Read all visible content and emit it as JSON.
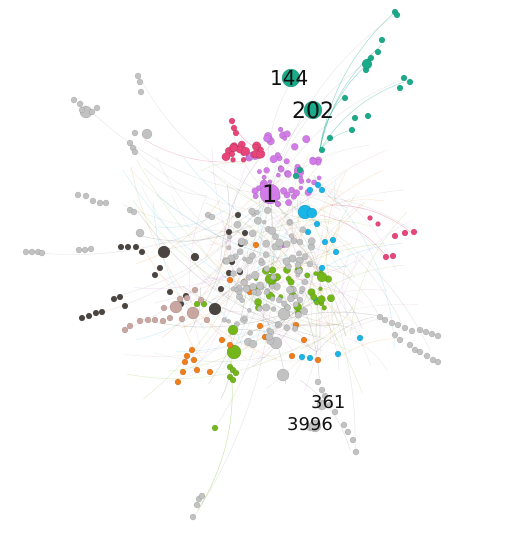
{
  "graph": {
    "labels": {
      "n144": "144",
      "n202": "202",
      "n1": "1",
      "n361": "361",
      "n3996": "3996"
    },
    "colors": {
      "gray": "#c2c2c2",
      "grayStroke": "#9e9e9e",
      "teal": "#1aab8a",
      "pink": "#e8457a",
      "violet": "#d27ce8",
      "sky": "#19b5e6",
      "charcoal": "#4b4541",
      "lime": "#74b71a",
      "orange": "#ee7d1a",
      "rose": "#c9a6a0"
    }
  }
}
